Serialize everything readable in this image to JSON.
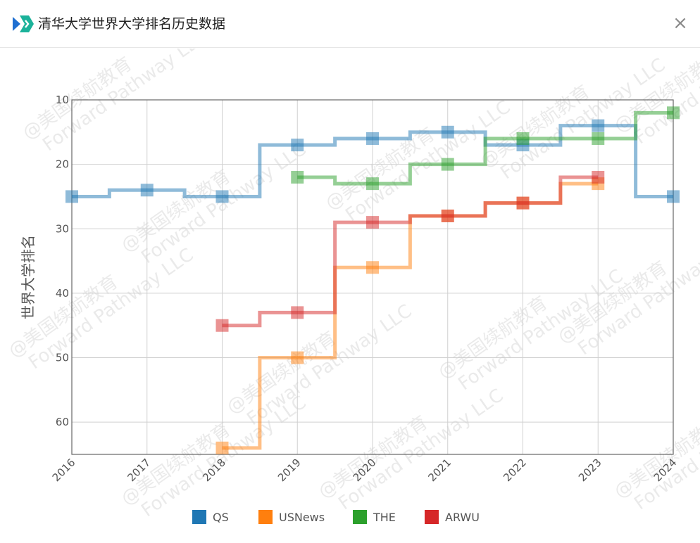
{
  "dialog": {
    "title": "清华大学世界大学排名历史数据",
    "close_label": "×"
  },
  "watermark": [
    "@美国续航教育",
    "Forward Pathway LLC"
  ],
  "chart_data": {
    "type": "line",
    "step": "middle",
    "title": "",
    "xlabel": "",
    "ylabel": "世界大学排名",
    "y_inverted": true,
    "ylim": [
      10,
      65
    ],
    "y_ticks": [
      10,
      20,
      30,
      40,
      50,
      60
    ],
    "x_ticks": [
      2016,
      2017,
      2018,
      2019,
      2020,
      2021,
      2022,
      2023,
      2024
    ],
    "grid": true,
    "legend_position": "bottom",
    "series": [
      {
        "name": "QS",
        "color": "#1f77b4",
        "x": [
          2016,
          2017,
          2018,
          2019,
          2020,
          2021,
          2022,
          2023,
          2024
        ],
        "values": [
          25,
          24,
          25,
          17,
          16,
          15,
          17,
          14,
          25
        ]
      },
      {
        "name": "USNews",
        "color": "#ff7f0e",
        "x": [
          2018,
          2019,
          2020,
          2021,
          2022,
          2023
        ],
        "values": [
          64,
          50,
          36,
          28,
          26,
          23
        ]
      },
      {
        "name": "THE",
        "color": "#2ca02c",
        "x": [
          2019,
          2020,
          2021,
          2022,
          2023,
          2024
        ],
        "values": [
          22,
          23,
          20,
          16,
          16,
          12
        ]
      },
      {
        "name": "ARWU",
        "color": "#d62728",
        "x": [
          2018,
          2019,
          2020,
          2021,
          2022,
          2023
        ],
        "values": [
          45,
          43,
          29,
          28,
          26,
          22
        ]
      }
    ]
  }
}
